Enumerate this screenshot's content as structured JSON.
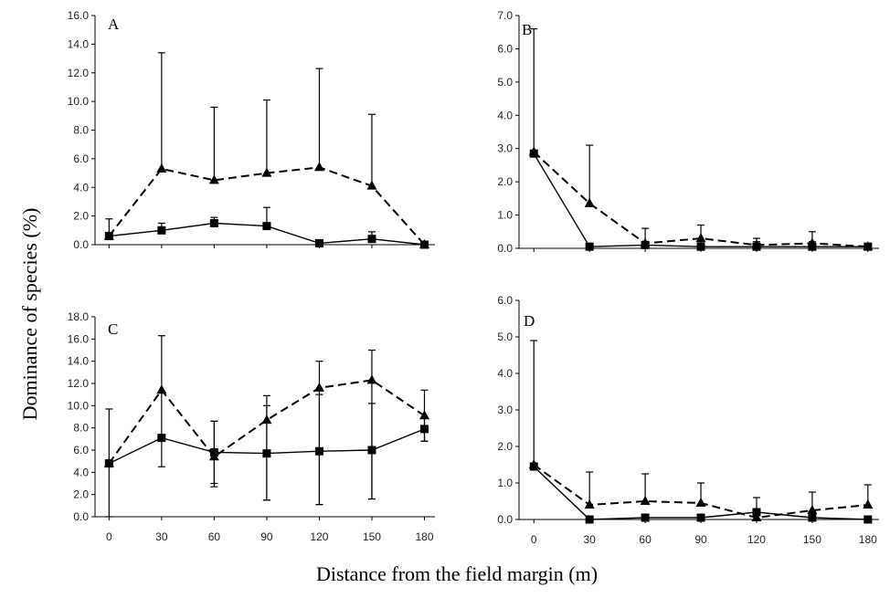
{
  "figure": {
    "ylabel": "Dominance of species (%)",
    "xlabel": "Distance from the field margin (m)"
  },
  "chart_data": [
    {
      "type": "line",
      "panel": "A",
      "x": [
        0,
        30,
        60,
        90,
        120,
        150,
        180
      ],
      "ylim": [
        0,
        16
      ],
      "yticks": [
        "0.0",
        "2.0",
        "4.0",
        "6.0",
        "8.0",
        "10.0",
        "12.0",
        "14.0",
        "16.0"
      ],
      "show_x_ticks": false,
      "series": [
        {
          "marker": "triangle",
          "dash": true,
          "values": [
            0.6,
            5.3,
            4.5,
            5.0,
            5.4,
            4.1,
            0.0
          ],
          "error_upper": [
            1.8,
            13.4,
            9.6,
            10.1,
            12.3,
            9.1,
            null
          ]
        },
        {
          "marker": "square",
          "dash": false,
          "values": [
            0.6,
            1.0,
            1.5,
            1.3,
            0.1,
            0.4,
            0.0
          ],
          "error_upper": [
            null,
            1.5,
            1.9,
            2.6,
            0.3,
            0.9,
            null
          ]
        }
      ]
    },
    {
      "type": "line",
      "panel": "B",
      "x": [
        0,
        30,
        60,
        90,
        120,
        150,
        180
      ],
      "ylim": [
        0,
        7
      ],
      "yticks": [
        "0.0",
        "1.0",
        "2.0",
        "3.0",
        "4.0",
        "5.0",
        "6.0",
        "7.0"
      ],
      "show_x_ticks": false,
      "series": [
        {
          "marker": "triangle",
          "dash": true,
          "values": [
            2.9,
            1.35,
            0.15,
            0.3,
            0.1,
            0.15,
            0.05
          ],
          "error_upper": [
            null,
            3.1,
            0.6,
            0.7,
            0.3,
            0.5,
            null
          ]
        },
        {
          "marker": "square",
          "dash": false,
          "values": [
            2.85,
            0.05,
            0.1,
            0.05,
            0.05,
            0.05,
            0.05
          ],
          "error_upper": [
            6.6,
            null,
            null,
            0.2,
            0.2,
            0.2,
            null
          ]
        }
      ]
    },
    {
      "type": "line",
      "panel": "C",
      "x": [
        0,
        30,
        60,
        90,
        120,
        150,
        180
      ],
      "ylim": [
        0,
        18
      ],
      "yticks": [
        "0.0",
        "2.0",
        "4.0",
        "6.0",
        "8.0",
        "10.0",
        "12.0",
        "14.0",
        "16.0",
        "18.0"
      ],
      "xticks": [
        "0",
        "30",
        "60",
        "90",
        "120",
        "150",
        "180"
      ],
      "show_x_ticks": true,
      "series": [
        {
          "marker": "triangle",
          "dash": true,
          "values": [
            4.8,
            11.4,
            5.4,
            8.7,
            11.6,
            12.3,
            9.1
          ],
          "error_upper": [
            9.7,
            16.3,
            8.6,
            10.9,
            14.0,
            15.0,
            11.4
          ],
          "error_lower": [
            0.0,
            4.5,
            2.7,
            1.5,
            1.1,
            1.6,
            6.8
          ]
        },
        {
          "marker": "square",
          "dash": false,
          "values": [
            4.8,
            7.1,
            5.8,
            5.7,
            5.9,
            6.0,
            7.9
          ],
          "error_upper": [
            null,
            null,
            8.6,
            10.0,
            11.0,
            10.2,
            8.9
          ],
          "error_lower": [
            null,
            null,
            3.0,
            1.5,
            1.1,
            1.6,
            6.8
          ]
        }
      ]
    },
    {
      "type": "line",
      "panel": "D",
      "x": [
        0,
        30,
        60,
        90,
        120,
        150,
        180
      ],
      "ylim": [
        0,
        6
      ],
      "yticks": [
        "0.0",
        "1.0",
        "2.0",
        "3.0",
        "4.0",
        "5.0",
        "6.0"
      ],
      "xticks": [
        "0",
        "30",
        "60",
        "90",
        "120",
        "150",
        "180"
      ],
      "show_x_ticks": true,
      "series": [
        {
          "marker": "triangle",
          "dash": true,
          "values": [
            1.5,
            0.4,
            0.5,
            0.45,
            0.05,
            0.25,
            0.4
          ],
          "error_upper": [
            null,
            1.3,
            1.25,
            1.0,
            0.6,
            0.75,
            0.95
          ]
        },
        {
          "marker": "square",
          "dash": false,
          "values": [
            1.45,
            0.0,
            0.05,
            0.05,
            0.2,
            0.05,
            0.0
          ],
          "error_upper": [
            4.9,
            null,
            null,
            null,
            null,
            null,
            null
          ]
        }
      ]
    }
  ]
}
